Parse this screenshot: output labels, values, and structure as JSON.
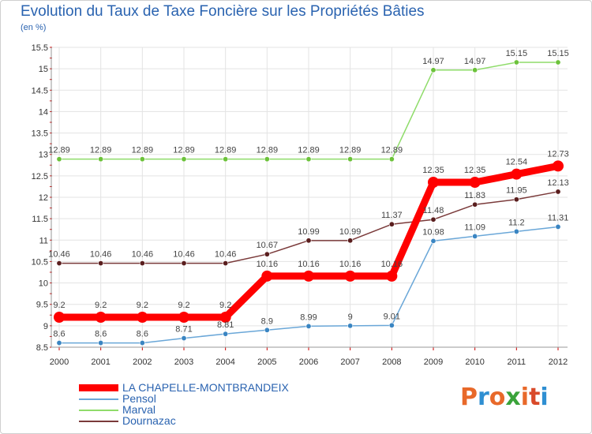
{
  "title": "Evolution du Taux de Taxe Foncière sur les Propriétés Bâties",
  "unit_label": "(en %)",
  "logo": {
    "text": "Proxiti",
    "colors": [
      "#e8692a",
      "#2f8fd2",
      "#e8692a",
      "#3aa33a",
      "#e8692a",
      "#d94a2a",
      "#2f8fd2"
    ]
  },
  "legend": [
    {
      "label": "LA CHAPELLE-MONTBRANDEIX",
      "color": "#ff0000",
      "thick": true
    },
    {
      "label": "Pensol",
      "color": "#6aa7d8",
      "thick": false
    },
    {
      "label": "Marval",
      "color": "#8fdc6a",
      "thick": false
    },
    {
      "label": "Dournazac",
      "color": "#7a3a3a",
      "thick": false
    }
  ],
  "chart_data": {
    "type": "line",
    "x": [
      "2000",
      "2001",
      "2002",
      "2003",
      "2004",
      "2005",
      "2006",
      "2007",
      "2008",
      "2009",
      "2010",
      "2011",
      "2012"
    ],
    "ylim": [
      8.5,
      15.5
    ],
    "yticks": [
      "8.5",
      "9",
      "9.5",
      "10",
      "10.5",
      "11",
      "11.5",
      "12",
      "12.5",
      "13",
      "13.5",
      "14",
      "14.5",
      "15",
      "15.5"
    ],
    "grid": true,
    "series": [
      {
        "name": "Marval",
        "color": "#8fdc6a",
        "marker": "#6cc23a",
        "width": 1.5,
        "values": [
          12.89,
          12.89,
          12.89,
          12.89,
          12.89,
          12.89,
          12.89,
          12.89,
          12.89,
          14.97,
          14.97,
          15.15,
          15.15
        ],
        "labels": [
          "12.89",
          "12.89",
          "12.89",
          "12.89",
          "12.89",
          "12.89",
          "12.89",
          "12.89",
          "12.89",
          "14.97",
          "14.97",
          "15.15",
          "15.15"
        ]
      },
      {
        "name": "Dournazac",
        "color": "#7a3a3a",
        "marker": "#5a1e1e",
        "width": 1.5,
        "values": [
          10.46,
          10.46,
          10.46,
          10.46,
          10.46,
          10.67,
          10.99,
          10.99,
          11.37,
          11.48,
          11.83,
          11.95,
          12.13
        ],
        "labels": [
          "10.46",
          "10.46",
          "10.46",
          "10.46",
          "10.46",
          "10.67",
          "10.99",
          "10.99",
          "11.37",
          "11.48",
          "11.83",
          "11.95",
          "12.13"
        ]
      },
      {
        "name": "Pensol",
        "color": "#6aa7d8",
        "marker": "#3a85c2",
        "width": 1.5,
        "values": [
          8.6,
          8.6,
          8.6,
          8.71,
          8.81,
          8.9,
          8.99,
          9,
          9.01,
          10.98,
          11.09,
          11.2,
          11.31
        ],
        "labels": [
          "8.6",
          "8.6",
          "8.6",
          "8.71",
          "8.81",
          "8.9",
          "8.99",
          "9",
          "9.01",
          "10.98",
          "11.09",
          "11.2",
          "11.31"
        ]
      },
      {
        "name": "LA CHAPELLE-MONTBRANDEIX",
        "color": "#ff0000",
        "marker": "#ff0000",
        "width": 9,
        "values": [
          9.2,
          9.2,
          9.2,
          9.2,
          9.2,
          10.16,
          10.16,
          10.16,
          10.16,
          12.35,
          12.35,
          12.54,
          12.73
        ],
        "labels": [
          "9.2",
          "9.2",
          "9.2",
          "9.2",
          "9.2",
          "10.16",
          "10.16",
          "10.16",
          "10.16",
          "12.35",
          "12.35",
          "12.54",
          "12.73"
        ]
      }
    ]
  }
}
